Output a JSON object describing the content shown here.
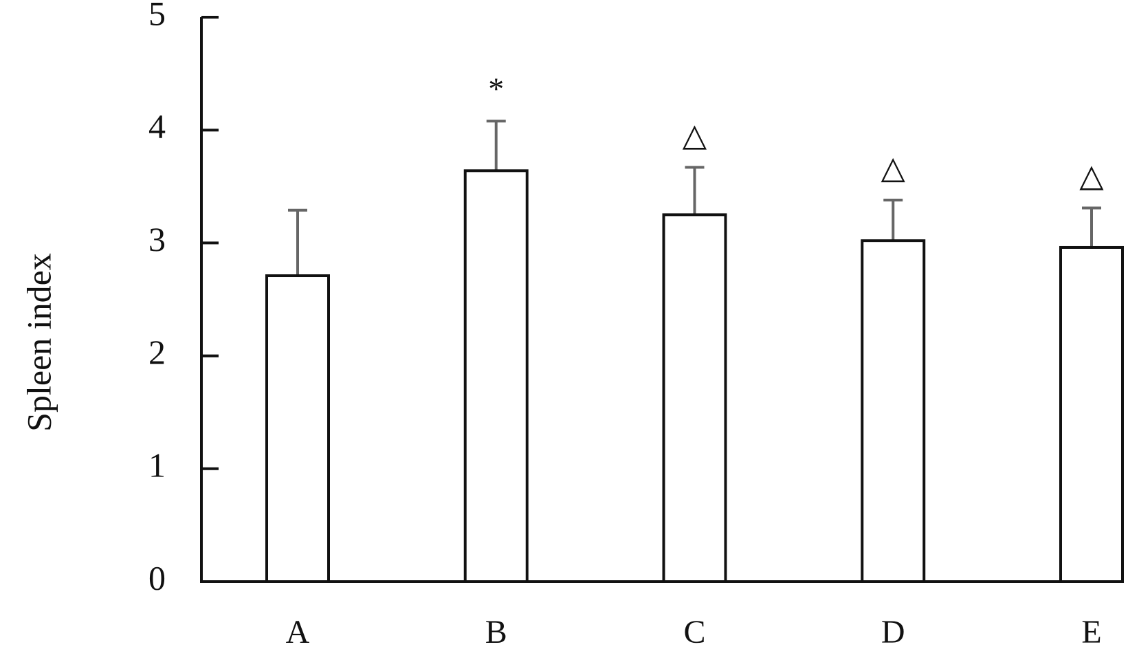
{
  "chart_data": {
    "type": "bar",
    "y_label": "Spleen index",
    "categories": [
      "A",
      "B",
      "C",
      "D",
      "E"
    ],
    "values": [
      2.71,
      3.64,
      3.25,
      3.02,
      2.96
    ],
    "errors": [
      0.58,
      0.44,
      0.42,
      0.36,
      0.35
    ],
    "annotations": [
      null,
      "*",
      "△",
      "△",
      "△"
    ],
    "color": "#ffffff",
    "edge_color": "#111111",
    "error_color": "#666666",
    "ylim": [
      0,
      5
    ],
    "yticks": [
      0,
      1,
      2,
      3,
      4,
      5
    ],
    "grid": false
  }
}
